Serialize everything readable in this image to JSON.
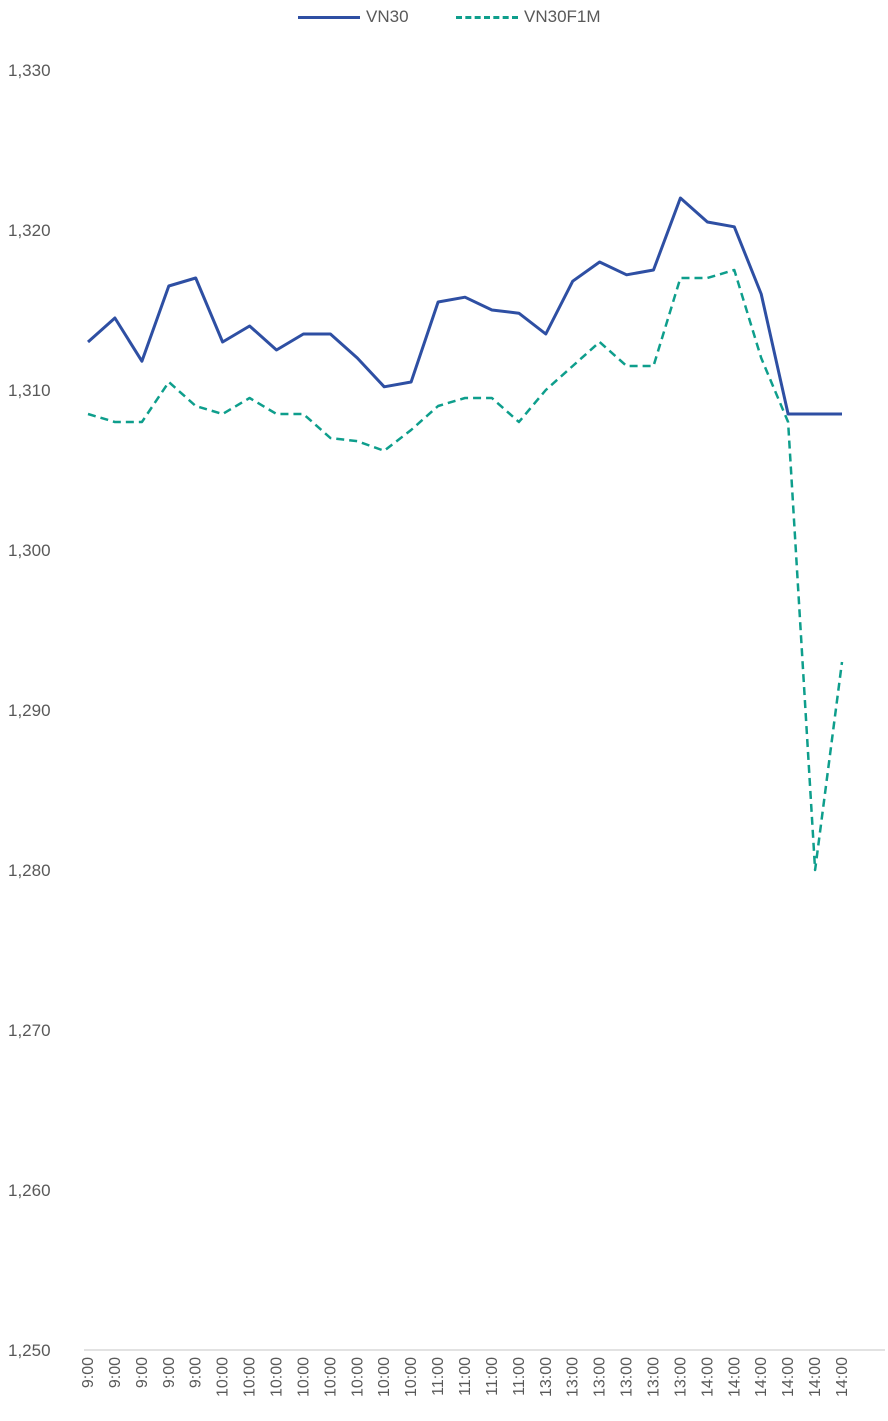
{
  "chart_data": {
    "type": "line",
    "title": "",
    "xlabel": "",
    "ylabel": "",
    "ylim": [
      1250,
      1330
    ],
    "y_ticks": [
      "1,250",
      "1,260",
      "1,270",
      "1,280",
      "1,290",
      "1,300",
      "1,310",
      "1,320",
      "1,330"
    ],
    "x_tick_labels": [
      "9:00",
      "9:00",
      "9:00",
      "9:00",
      "9:00",
      "10:00",
      "10:00",
      "10:00",
      "10:00",
      "10:00",
      "10:00",
      "10:00",
      "10:00",
      "11:00",
      "11:00",
      "11:00",
      "11:00",
      "13:00",
      "13:00",
      "13:00",
      "13:00",
      "13:00",
      "13:00",
      "14:00",
      "14:00",
      "14:00",
      "14:00",
      "14:00",
      "14:00"
    ],
    "grid": false,
    "legend_position": "top",
    "x": [
      0,
      1,
      2,
      3,
      4,
      5,
      6,
      7,
      8,
      9,
      10,
      11,
      12,
      13,
      14,
      15,
      16,
      17,
      18,
      19,
      20,
      21,
      22,
      23,
      24,
      25,
      26,
      27,
      28
    ],
    "series": [
      {
        "name": "VN30",
        "color": "#2E4FA3",
        "style": "solid",
        "values": [
          1313.0,
          1314.5,
          1311.8,
          1316.5,
          1317.0,
          1313.0,
          1314.0,
          1312.5,
          1313.5,
          1313.5,
          1312.0,
          1310.2,
          1310.5,
          1315.5,
          1315.8,
          1315.0,
          1314.8,
          1313.5,
          1316.8,
          1318.0,
          1317.2,
          1317.5,
          1322.0,
          1320.5,
          1320.2,
          1316.0,
          1308.5,
          1308.5,
          1308.5
        ]
      },
      {
        "name": "VN30F1M",
        "color": "#0E9E8C",
        "style": "dashed",
        "values": [
          1308.5,
          1308.0,
          1308.0,
          1310.5,
          1309.0,
          1308.5,
          1309.5,
          1308.5,
          1308.5,
          1307.0,
          1306.8,
          1306.2,
          1307.5,
          1309.0,
          1309.5,
          1309.5,
          1308.0,
          1310.0,
          1311.5,
          1313.0,
          1311.5,
          1311.5,
          1317.0,
          1317.0,
          1317.5,
          1312.0,
          1308.0,
          1280.0,
          1293.0
        ]
      }
    ]
  }
}
